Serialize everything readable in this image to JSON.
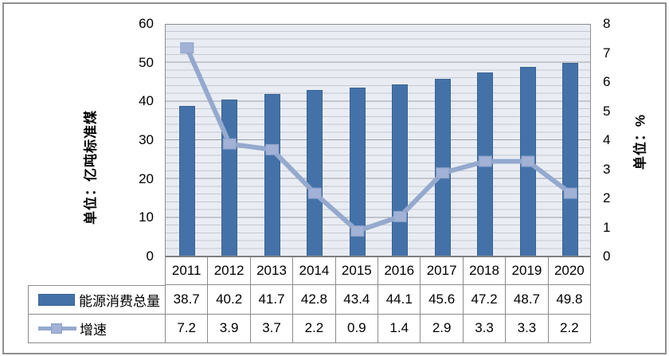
{
  "chart_data": {
    "type": "bar",
    "subtype": "combo-bar-line-dual-axis",
    "categories": [
      "2011",
      "2012",
      "2013",
      "2014",
      "2015",
      "2016",
      "2017",
      "2018",
      "2019",
      "2020"
    ],
    "series": [
      {
        "name": "能源消费总量",
        "type": "bar",
        "axis": "left",
        "values": [
          38.7,
          40.2,
          41.7,
          42.8,
          43.4,
          44.1,
          45.6,
          47.2,
          48.7,
          49.8
        ]
      },
      {
        "name": "增速",
        "type": "line",
        "axis": "right",
        "values": [
          7.2,
          3.9,
          3.7,
          2.2,
          0.9,
          1.4,
          2.9,
          3.3,
          3.3,
          2.2
        ]
      }
    ],
    "title": "",
    "left_axis": {
      "title": "单位：亿吨标准煤",
      "min": 0,
      "max": 60,
      "major_unit": 10,
      "minor_unit": 2,
      "ticks": [
        60,
        50,
        40,
        30,
        20,
        10,
        0
      ]
    },
    "right_axis": {
      "title": "单位：%",
      "min": 0,
      "max": 8,
      "major_unit": 1,
      "ticks": [
        8,
        7,
        6,
        5,
        4,
        3,
        2,
        1,
        0
      ]
    },
    "grid": "horizontal minor gridlines on",
    "legend_position": "bottom data table"
  },
  "colors": {
    "bar": "#4472a8",
    "bar_border": "#3a6294",
    "line": "#95a9ce",
    "marker_fill": "#a2b1d6",
    "marker_border": "#8ba1c9",
    "plot_background": "#e9edf3",
    "grid_minor": "#c3c8d1",
    "grid_major": "#9aa0a8",
    "table_border": "#8c8c8c",
    "frame_border": "#8f8f8f"
  }
}
